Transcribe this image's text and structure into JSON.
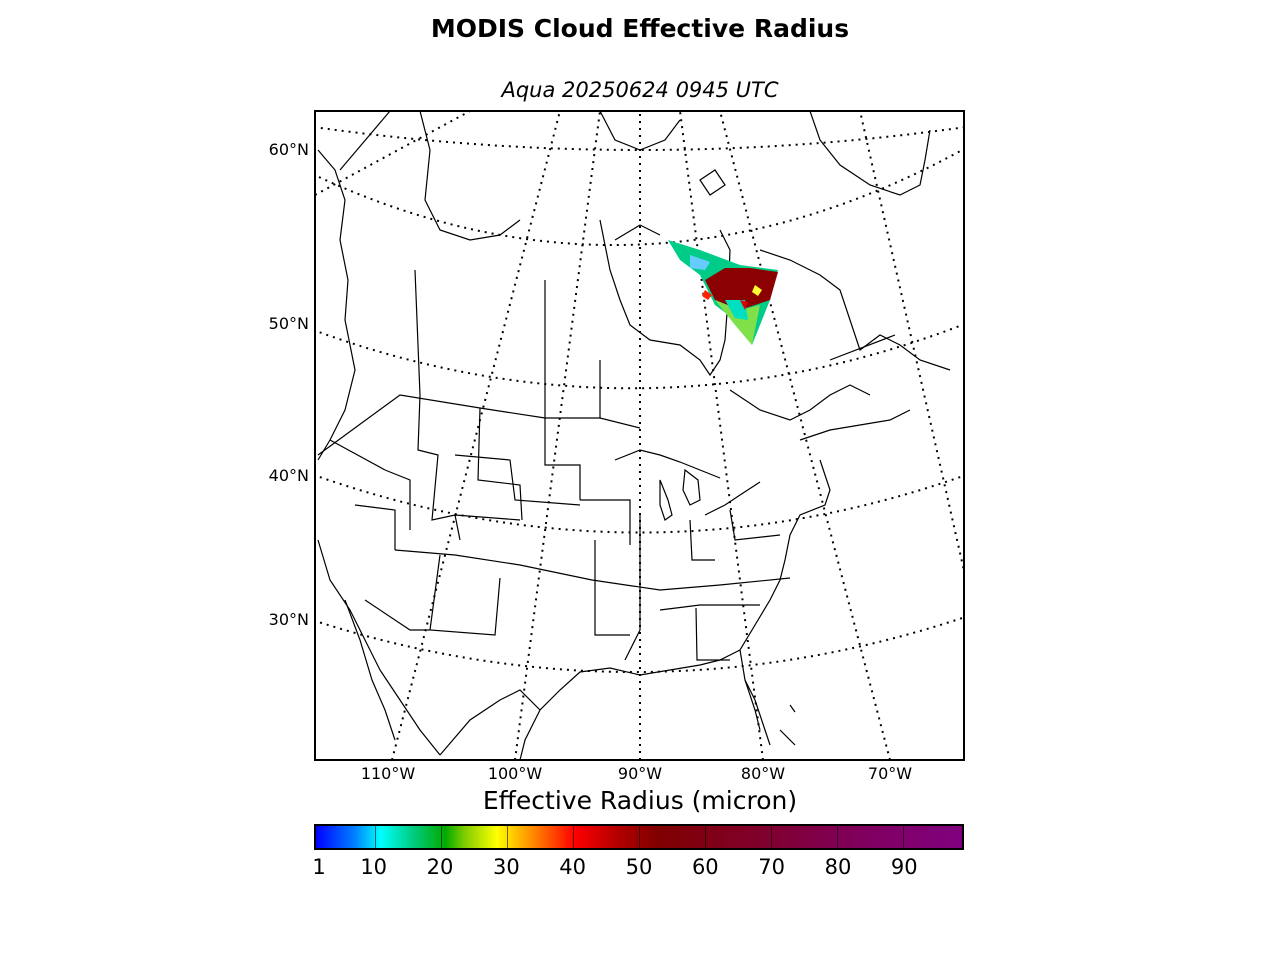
{
  "title": "MODIS Cloud Effective Radius",
  "subtitle": "Aqua 20250624 0945 UTC",
  "map": {
    "region": "North America",
    "latitude_labels": [
      "60°N",
      "50°N",
      "40°N",
      "30°N"
    ],
    "longitude_labels": [
      "110°W",
      "100°W",
      "90°W",
      "80°W",
      "70°W"
    ],
    "graticule_style": "dotted",
    "swath_location": "Hudson Bay / northern Quebec",
    "colors": {
      "land_outline": "#000000",
      "background": "#ffffff"
    }
  },
  "colorbar": {
    "title": "Effective Radius (micron)",
    "tick_labels": [
      "1",
      "10",
      "20",
      "30",
      "40",
      "50",
      "60",
      "70",
      "80",
      "90"
    ],
    "min": 1,
    "max": 99,
    "colors": [
      "#0000ff",
      "#00ffff",
      "#00aa00",
      "#ffff00",
      "#ff8000",
      "#ff0000",
      "#800000",
      "#800080"
    ]
  }
}
